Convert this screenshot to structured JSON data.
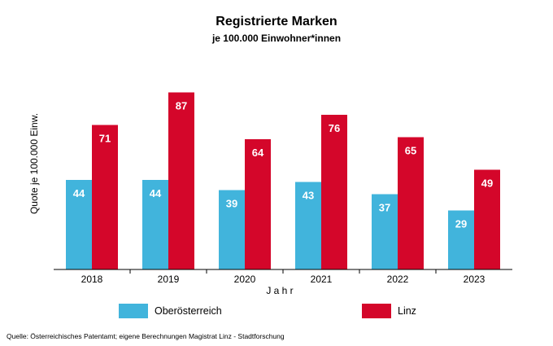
{
  "chart_data": {
    "type": "bar",
    "title": "Registrierte Marken",
    "subtitle": "je 100.000 Einwohner*innen",
    "xlabel": "J a h r",
    "ylabel": "Quote je 100.000 Einw.",
    "categories": [
      "2018",
      "2019",
      "2020",
      "2021",
      "2022",
      "2023"
    ],
    "series": [
      {
        "name": "Oberösterreich",
        "color": "#41b4dc",
        "values": [
          44,
          44,
          39,
          43,
          37,
          29
        ]
      },
      {
        "name": "Linz",
        "color": "#d4062a",
        "values": [
          71,
          87,
          64,
          76,
          65,
          49
        ]
      }
    ],
    "ylim": [
      0,
      100
    ],
    "grid": false,
    "data_labels": true,
    "legend_position": "bottom"
  },
  "source": "Quelle: Österreichisches Patentamt; eigene Berechnungen Magistrat Linz - Stadtforschung"
}
